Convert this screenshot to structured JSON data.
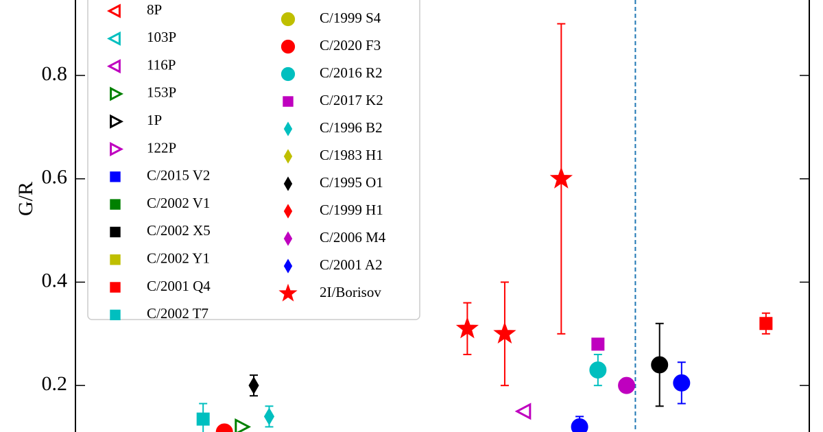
{
  "chart_data": {
    "type": "scatter",
    "y_label": "G/R",
    "xlim": [
      0,
      10
    ],
    "ylim": [
      0.11,
      0.946
    ],
    "yticks": [
      0.2,
      0.4,
      0.6,
      0.8
    ],
    "vline": 7.63,
    "vline_color": "#1f77b4",
    "series": [
      {
        "name": "8P",
        "color": "#ff0000",
        "marker": "tri-left",
        "filled": false,
        "x": [],
        "values": []
      },
      {
        "name": "103P",
        "color": "#00bfbf",
        "marker": "tri-left",
        "filled": false,
        "x": [],
        "values": []
      },
      {
        "name": "116P",
        "color": "#bf00bf",
        "marker": "tri-left",
        "filled": false,
        "x": [
          6.12
        ],
        "values": [
          0.15
        ]
      },
      {
        "name": "153P",
        "color": "#008000",
        "marker": "tri-right",
        "filled": false,
        "x": [
          2.26
        ],
        "values": [
          0.12
        ]
      },
      {
        "name": "1P",
        "color": "#000000",
        "marker": "tri-right",
        "filled": false,
        "x": [],
        "values": []
      },
      {
        "name": "122P",
        "color": "#bf00bf",
        "marker": "tri-right",
        "filled": false,
        "x": [],
        "values": []
      },
      {
        "name": "C/2015 V2",
        "color": "#0000ff",
        "marker": "square",
        "filled": true,
        "x": [],
        "values": []
      },
      {
        "name": "C/2002 V1",
        "color": "#008000",
        "marker": "square",
        "filled": true,
        "x": [],
        "values": []
      },
      {
        "name": "C/2002 X5",
        "color": "#000000",
        "marker": "square",
        "filled": true,
        "x": [],
        "values": []
      },
      {
        "name": "C/2002 Y1",
        "color": "#bfbf00",
        "marker": "square",
        "filled": true,
        "x": [],
        "values": []
      },
      {
        "name": "C/2001 Q4",
        "color": "#ff0000",
        "marker": "square",
        "filled": true,
        "x": [
          9.41
        ],
        "values": [
          0.32
        ],
        "errors": [
          0.02
        ]
      },
      {
        "name": "C/2002 T7",
        "color": "#00bfbf",
        "marker": "square",
        "filled": true,
        "x": [
          1.74
        ],
        "values": [
          0.135
        ],
        "errors": [
          0.03
        ]
      },
      {
        "name": "C/1999 S4",
        "color": "#bfbf00",
        "marker": "circle",
        "filled": true,
        "x": [],
        "values": []
      },
      {
        "name": "C/2020 F3",
        "color": "#ff0000",
        "marker": "circle",
        "filled": true,
        "x": [
          2.03
        ],
        "values": [
          0.11
        ]
      },
      {
        "name": "C/2016 R2",
        "color": "#00bfbf",
        "marker": "circle",
        "filled": true,
        "x": [
          7.12
        ],
        "values": [
          0.23
        ],
        "errors": [
          0.03
        ]
      },
      {
        "name": "C/2017 K2",
        "color": "#bf00bf",
        "marker": "square",
        "filled": true,
        "x": [
          7.12
        ],
        "values": [
          0.28
        ]
      },
      {
        "name": "C/1996 B2",
        "color": "#00bfbf",
        "marker": "diamond",
        "filled": true,
        "x": [
          2.64
        ],
        "values": [
          0.14
        ],
        "errors": [
          0.02
        ]
      },
      {
        "name": "C/1983 H1",
        "color": "#bfbf00",
        "marker": "diamond",
        "filled": true,
        "x": [],
        "values": []
      },
      {
        "name": "C/1995 O1",
        "color": "#000000",
        "marker": "diamond",
        "filled": true,
        "x": [
          2.43
        ],
        "values": [
          0.2
        ],
        "errors": [
          0.02
        ]
      },
      {
        "name": "C/1999 H1",
        "color": "#ff0000",
        "marker": "diamond",
        "filled": true,
        "x": [],
        "values": []
      },
      {
        "name": "C/2006 M4",
        "color": "#bf00bf",
        "marker": "diamond",
        "filled": true,
        "x": [],
        "values": []
      },
      {
        "name": "C/2001 A2",
        "color": "#0000ff",
        "marker": "diamond",
        "filled": true,
        "x": [],
        "values": []
      },
      {
        "name": "2I/Borisov",
        "color": "#ff0000",
        "marker": "star",
        "filled": true,
        "x": [
          5.34,
          5.85,
          6.62
        ],
        "values": [
          0.31,
          0.3,
          0.6
        ],
        "errors": [
          0.05,
          0.1,
          0.3
        ]
      },
      {
        "color": "#bf00bf",
        "marker": "circle",
        "filled": true,
        "x": [
          7.51
        ],
        "values": [
          0.2
        ]
      },
      {
        "color": "#000000",
        "marker": "circle",
        "filled": true,
        "x": [
          7.96
        ],
        "values": [
          0.24
        ],
        "errors": [
          0.08
        ]
      },
      {
        "color": "#0000ff",
        "marker": "circle",
        "filled": true,
        "x": [
          8.26,
          6.87
        ],
        "values": [
          0.205,
          0.12
        ],
        "errors": [
          0.04,
          0.02
        ]
      }
    ]
  }
}
